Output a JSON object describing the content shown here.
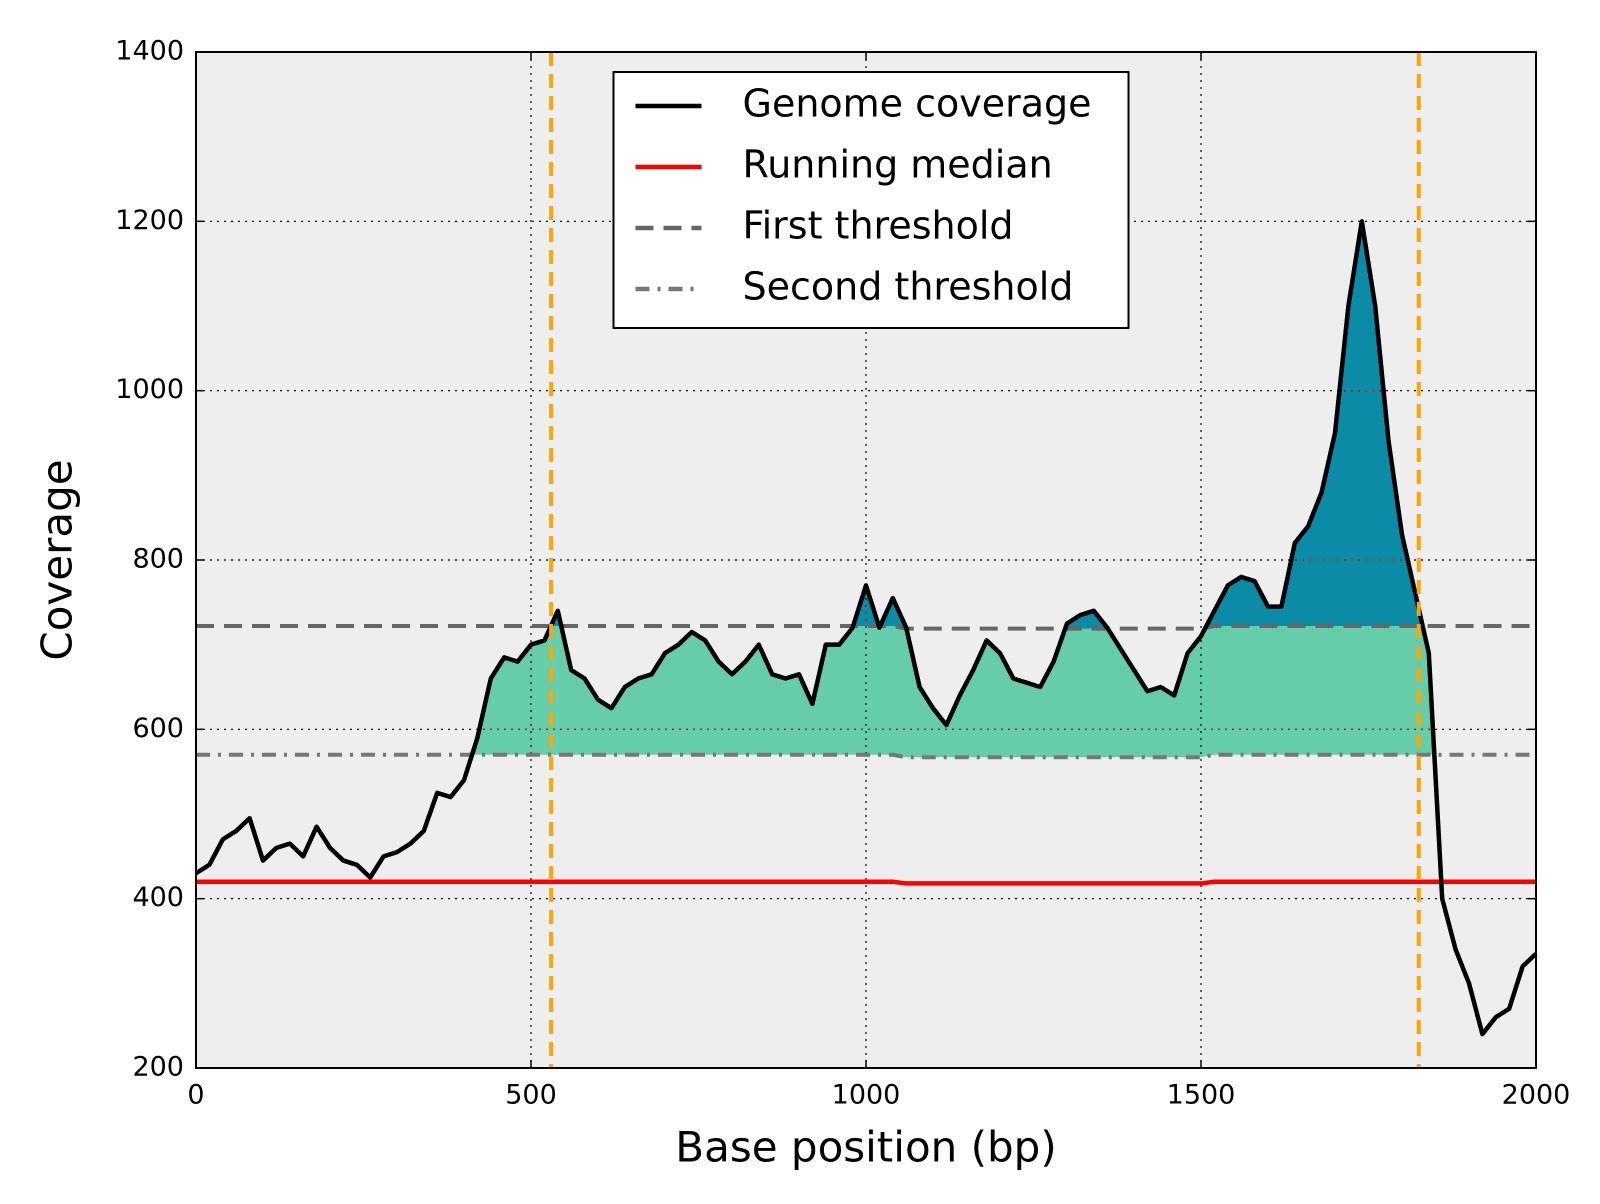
{
  "chart_data": {
    "type": "line",
    "xlabel": "Base position (bp)",
    "ylabel": "Coverage",
    "xlim": [
      0,
      2000
    ],
    "ylim": [
      200,
      1400
    ],
    "xticks": [
      0,
      500,
      1000,
      1500,
      2000
    ],
    "yticks": [
      200,
      400,
      600,
      800,
      1000,
      1200,
      1400
    ],
    "grid": true,
    "legend": "upper center",
    "background": "#eeeeee",
    "series": [
      {
        "name": "Genome coverage",
        "color": "#000000",
        "style": "solid",
        "x": [
          0,
          20,
          40,
          60,
          80,
          100,
          120,
          140,
          160,
          180,
          200,
          220,
          240,
          260,
          280,
          300,
          320,
          340,
          360,
          380,
          400,
          420,
          440,
          460,
          480,
          500,
          520,
          540,
          560,
          580,
          600,
          620,
          640,
          660,
          680,
          700,
          720,
          740,
          760,
          780,
          800,
          820,
          840,
          860,
          880,
          900,
          920,
          940,
          960,
          980,
          1000,
          1020,
          1040,
          1060,
          1080,
          1100,
          1120,
          1140,
          1160,
          1180,
          1200,
          1220,
          1240,
          1260,
          1280,
          1300,
          1320,
          1340,
          1360,
          1380,
          1400,
          1420,
          1440,
          1460,
          1480,
          1500,
          1520,
          1540,
          1560,
          1580,
          1600,
          1620,
          1640,
          1660,
          1680,
          1700,
          1720,
          1740,
          1760,
          1780,
          1800,
          1820,
          1840,
          1860,
          1880,
          1900,
          1920,
          1940,
          1960,
          1980,
          2000
        ],
        "values": [
          430,
          440,
          470,
          480,
          495,
          445,
          460,
          465,
          450,
          485,
          460,
          445,
          440,
          425,
          450,
          455,
          465,
          480,
          525,
          520,
          540,
          590,
          660,
          685,
          680,
          700,
          705,
          740,
          670,
          660,
          635,
          625,
          650,
          660,
          665,
          690,
          700,
          715,
          705,
          680,
          665,
          680,
          700,
          665,
          660,
          665,
          630,
          700,
          700,
          720,
          770,
          720,
          755,
          720,
          650,
          625,
          605,
          640,
          670,
          705,
          690,
          660,
          655,
          650,
          680,
          725,
          735,
          740,
          720,
          695,
          670,
          645,
          650,
          640,
          690,
          710,
          740,
          770,
          780,
          775,
          745,
          745,
          820,
          840,
          880,
          950,
          1100,
          1200,
          1100,
          940,
          830,
          760,
          690,
          400,
          340,
          300,
          240,
          260,
          270,
          320,
          335
        ]
      },
      {
        "name": "Running median",
        "color": "#ff0000",
        "style": "solid",
        "x": [
          0,
          1040,
          1060,
          1500,
          1520,
          2000
        ],
        "values": [
          420,
          420,
          418,
          418,
          420,
          420
        ]
      },
      {
        "name": "First threshold",
        "color": "#666666",
        "style": "dashed",
        "x": [
          0,
          1040,
          1060,
          1500,
          1520,
          2000
        ],
        "values": [
          722,
          722,
          719,
          719,
          722,
          722
        ]
      },
      {
        "name": "Second threshold",
        "color": "#777777",
        "style": "dashdot",
        "x": [
          0,
          1040,
          1060,
          1500,
          1520,
          2000
        ],
        "values": [
          570,
          570,
          567,
          567,
          570,
          570
        ]
      }
    ],
    "fill_colors": [
      "#66cdaa",
      "#0b8ba6"
    ],
    "vlines": {
      "x": [
        530,
        1825
      ],
      "color": "#ffa500"
    }
  }
}
